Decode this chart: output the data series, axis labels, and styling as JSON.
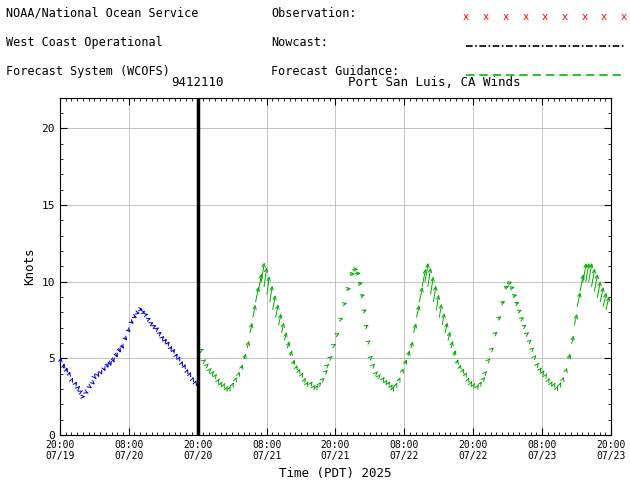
{
  "title": "Port San Luis, CA Winds",
  "station_id": "9412110",
  "ylabel": "Knots",
  "xlabel": "Time (PDT) 2025",
  "ylim": [
    0,
    22
  ],
  "yticks": [
    0,
    5,
    10,
    15,
    20
  ],
  "header_line1": "NOAA/National Ocean Service",
  "header_line2": "West Coast Operational",
  "header_line3": "Forecast System (WCOFS)",
  "legend_obs": "Observation:",
  "legend_now": "Nowcast:",
  "legend_fcast": "Forecast Guidance:",
  "obs_color": "#ff0000",
  "now_color": "#000000",
  "fcast_color": "#00bb00",
  "arrow_color_blue": "#0000cc",
  "arrow_color_green": "#00aa00",
  "vline_x": 24,
  "bg_color": "#ffffff",
  "x_tick_positions": [
    0,
    12,
    24,
    36,
    48,
    60,
    72,
    84,
    96
  ],
  "tick_labels": [
    "20:00\n07/19",
    "08:00\n07/20",
    "20:00\n07/20",
    "08:00\n07/21",
    "20:00\n07/21",
    "08:00\n07/22",
    "20:00\n07/22",
    "08:00\n07/23",
    "20:00\n07/23"
  ],
  "wind_data": [
    {
      "t": 0.0,
      "spd": 4.5,
      "ang": 200,
      "green": false
    },
    {
      "t": 0.5,
      "spd": 4.2,
      "ang": 210,
      "green": false
    },
    {
      "t": 1.0,
      "spd": 4.0,
      "ang": 215,
      "green": false
    },
    {
      "t": 1.5,
      "spd": 3.8,
      "ang": 220,
      "green": false
    },
    {
      "t": 2.0,
      "spd": 3.5,
      "ang": 230,
      "green": false
    },
    {
      "t": 2.5,
      "spd": 3.2,
      "ang": 240,
      "green": false
    },
    {
      "t": 3.0,
      "spd": 3.0,
      "ang": 250,
      "green": false
    },
    {
      "t": 3.5,
      "spd": 2.8,
      "ang": 260,
      "green": false
    },
    {
      "t": 4.0,
      "spd": 2.5,
      "ang": 270,
      "green": false
    },
    {
      "t": 4.5,
      "spd": 2.8,
      "ang": 280,
      "green": false
    },
    {
      "t": 5.0,
      "spd": 3.2,
      "ang": 285,
      "green": false
    },
    {
      "t": 5.5,
      "spd": 3.5,
      "ang": 290,
      "green": false
    },
    {
      "t": 6.0,
      "spd": 3.8,
      "ang": 295,
      "green": false
    },
    {
      "t": 6.5,
      "spd": 4.0,
      "ang": 300,
      "green": false
    },
    {
      "t": 7.0,
      "spd": 4.2,
      "ang": 305,
      "green": false
    },
    {
      "t": 7.5,
      "spd": 4.5,
      "ang": 310,
      "green": false
    },
    {
      "t": 8.0,
      "spd": 4.8,
      "ang": 315,
      "green": false
    },
    {
      "t": 8.5,
      "spd": 5.0,
      "ang": 320,
      "green": false
    },
    {
      "t": 9.0,
      "spd": 5.2,
      "ang": 315,
      "green": false
    },
    {
      "t": 9.5,
      "spd": 5.5,
      "ang": 310,
      "green": false
    },
    {
      "t": 10.0,
      "spd": 5.8,
      "ang": 305,
      "green": false
    },
    {
      "t": 10.5,
      "spd": 6.0,
      "ang": 300,
      "green": false
    },
    {
      "t": 11.0,
      "spd": 6.5,
      "ang": 295,
      "green": false
    },
    {
      "t": 11.5,
      "spd": 7.0,
      "ang": 290,
      "green": false
    },
    {
      "t": 12.0,
      "spd": 7.5,
      "ang": 285,
      "green": false
    },
    {
      "t": 12.5,
      "spd": 7.8,
      "ang": 280,
      "green": false
    },
    {
      "t": 13.0,
      "spd": 8.0,
      "ang": 275,
      "green": false
    },
    {
      "t": 13.5,
      "spd": 8.2,
      "ang": 270,
      "green": false
    },
    {
      "t": 14.0,
      "spd": 8.0,
      "ang": 268,
      "green": false
    },
    {
      "t": 14.5,
      "spd": 7.8,
      "ang": 265,
      "green": false
    },
    {
      "t": 15.0,
      "spd": 7.5,
      "ang": 263,
      "green": false
    },
    {
      "t": 15.5,
      "spd": 7.2,
      "ang": 260,
      "green": false
    },
    {
      "t": 16.0,
      "spd": 7.0,
      "ang": 258,
      "green": false
    },
    {
      "t": 16.5,
      "spd": 6.8,
      "ang": 255,
      "green": false
    },
    {
      "t": 17.0,
      "spd": 6.5,
      "ang": 253,
      "green": false
    },
    {
      "t": 17.5,
      "spd": 6.2,
      "ang": 250,
      "green": false
    },
    {
      "t": 18.0,
      "spd": 6.0,
      "ang": 248,
      "green": false
    },
    {
      "t": 18.5,
      "spd": 5.8,
      "ang": 245,
      "green": false
    },
    {
      "t": 19.0,
      "spd": 5.5,
      "ang": 243,
      "green": false
    },
    {
      "t": 19.5,
      "spd": 5.3,
      "ang": 240,
      "green": false
    },
    {
      "t": 20.0,
      "spd": 5.0,
      "ang": 238,
      "green": false
    },
    {
      "t": 20.5,
      "spd": 4.8,
      "ang": 235,
      "green": false
    },
    {
      "t": 21.0,
      "spd": 4.5,
      "ang": 233,
      "green": false
    },
    {
      "t": 21.5,
      "spd": 4.3,
      "ang": 230,
      "green": false
    },
    {
      "t": 22.0,
      "spd": 4.0,
      "ang": 228,
      "green": false
    },
    {
      "t": 22.5,
      "spd": 3.8,
      "ang": 225,
      "green": false
    },
    {
      "t": 23.0,
      "spd": 3.5,
      "ang": 222,
      "green": false
    },
    {
      "t": 23.5,
      "spd": 3.3,
      "ang": 220,
      "green": false
    },
    {
      "t": 24.0,
      "spd": 3.2,
      "ang": 218,
      "green": false
    },
    {
      "t": 24.5,
      "spd": 5.5,
      "ang": 260,
      "green": true
    },
    {
      "t": 25.0,
      "spd": 4.8,
      "ang": 255,
      "green": true
    },
    {
      "t": 25.5,
      "spd": 4.5,
      "ang": 250,
      "green": true
    },
    {
      "t": 26.0,
      "spd": 4.2,
      "ang": 248,
      "green": true
    },
    {
      "t": 26.5,
      "spd": 4.0,
      "ang": 245,
      "green": true
    },
    {
      "t": 27.0,
      "spd": 3.8,
      "ang": 242,
      "green": true
    },
    {
      "t": 27.5,
      "spd": 3.5,
      "ang": 240,
      "green": true
    },
    {
      "t": 28.0,
      "spd": 3.3,
      "ang": 238,
      "green": true
    },
    {
      "t": 28.5,
      "spd": 3.2,
      "ang": 235,
      "green": true
    },
    {
      "t": 29.0,
      "spd": 3.0,
      "ang": 233,
      "green": true
    },
    {
      "t": 29.5,
      "spd": 3.0,
      "ang": 230,
      "green": true
    },
    {
      "t": 30.0,
      "spd": 3.2,
      "ang": 228,
      "green": true
    },
    {
      "t": 30.5,
      "spd": 3.5,
      "ang": 225,
      "green": true
    },
    {
      "t": 31.0,
      "spd": 3.8,
      "ang": 222,
      "green": true
    },
    {
      "t": 31.5,
      "spd": 4.2,
      "ang": 220,
      "green": true
    },
    {
      "t": 32.0,
      "spd": 4.8,
      "ang": 218,
      "green": true
    },
    {
      "t": 32.5,
      "spd": 5.5,
      "ang": 215,
      "green": true
    },
    {
      "t": 33.0,
      "spd": 6.5,
      "ang": 212,
      "green": true
    },
    {
      "t": 33.5,
      "spd": 7.5,
      "ang": 210,
      "green": true
    },
    {
      "t": 34.0,
      "spd": 8.5,
      "ang": 208,
      "green": true
    },
    {
      "t": 34.5,
      "spd": 9.2,
      "ang": 205,
      "green": true
    },
    {
      "t": 35.0,
      "spd": 9.8,
      "ang": 203,
      "green": true
    },
    {
      "t": 35.5,
      "spd": 9.5,
      "ang": 200,
      "green": true
    },
    {
      "t": 36.0,
      "spd": 9.0,
      "ang": 200,
      "green": true
    },
    {
      "t": 36.5,
      "spd": 8.5,
      "ang": 202,
      "green": true
    },
    {
      "t": 37.0,
      "spd": 8.0,
      "ang": 205,
      "green": true
    },
    {
      "t": 37.5,
      "spd": 7.5,
      "ang": 208,
      "green": true
    },
    {
      "t": 38.0,
      "spd": 7.0,
      "ang": 210,
      "green": true
    },
    {
      "t": 38.5,
      "spd": 6.5,
      "ang": 212,
      "green": true
    },
    {
      "t": 39.0,
      "spd": 6.0,
      "ang": 215,
      "green": true
    },
    {
      "t": 39.5,
      "spd": 5.5,
      "ang": 218,
      "green": true
    },
    {
      "t": 40.0,
      "spd": 5.0,
      "ang": 220,
      "green": true
    },
    {
      "t": 40.5,
      "spd": 4.5,
      "ang": 223,
      "green": true
    },
    {
      "t": 41.0,
      "spd": 4.2,
      "ang": 225,
      "green": true
    },
    {
      "t": 41.5,
      "spd": 4.0,
      "ang": 228,
      "green": true
    },
    {
      "t": 42.0,
      "spd": 3.8,
      "ang": 230,
      "green": true
    },
    {
      "t": 42.5,
      "spd": 3.5,
      "ang": 233,
      "green": true
    },
    {
      "t": 43.0,
      "spd": 3.3,
      "ang": 235,
      "green": true
    },
    {
      "t": 43.5,
      "spd": 3.2,
      "ang": 238,
      "green": true
    },
    {
      "t": 44.0,
      "spd": 3.0,
      "ang": 240,
      "green": true
    },
    {
      "t": 44.5,
      "spd": 3.0,
      "ang": 242,
      "green": true
    },
    {
      "t": 45.0,
      "spd": 3.2,
      "ang": 245,
      "green": true
    },
    {
      "t": 45.5,
      "spd": 3.5,
      "ang": 248,
      "green": true
    },
    {
      "t": 46.0,
      "spd": 4.0,
      "ang": 250,
      "green": true
    },
    {
      "t": 46.5,
      "spd": 4.5,
      "ang": 253,
      "green": true
    },
    {
      "t": 47.0,
      "spd": 5.0,
      "ang": 255,
      "green": true
    },
    {
      "t": 47.5,
      "spd": 5.8,
      "ang": 258,
      "green": true
    },
    {
      "t": 48.0,
      "spd": 6.5,
      "ang": 260,
      "green": true
    },
    {
      "t": 48.5,
      "spd": 7.5,
      "ang": 263,
      "green": true
    },
    {
      "t": 49.0,
      "spd": 8.5,
      "ang": 265,
      "green": true
    },
    {
      "t": 49.5,
      "spd": 9.5,
      "ang": 268,
      "green": true
    },
    {
      "t": 50.0,
      "spd": 10.5,
      "ang": 270,
      "green": true
    },
    {
      "t": 50.5,
      "spd": 10.8,
      "ang": 270,
      "green": true
    },
    {
      "t": 51.0,
      "spd": 10.5,
      "ang": 268,
      "green": true
    },
    {
      "t": 51.5,
      "spd": 9.8,
      "ang": 265,
      "green": true
    },
    {
      "t": 52.0,
      "spd": 9.0,
      "ang": 263,
      "green": true
    },
    {
      "t": 52.5,
      "spd": 8.0,
      "ang": 260,
      "green": true
    },
    {
      "t": 53.0,
      "spd": 7.0,
      "ang": 258,
      "green": true
    },
    {
      "t": 53.5,
      "spd": 6.0,
      "ang": 255,
      "green": true
    },
    {
      "t": 54.0,
      "spd": 5.0,
      "ang": 252,
      "green": true
    },
    {
      "t": 54.5,
      "spd": 4.5,
      "ang": 250,
      "green": true
    },
    {
      "t": 55.0,
      "spd": 4.0,
      "ang": 248,
      "green": true
    },
    {
      "t": 55.5,
      "spd": 3.8,
      "ang": 245,
      "green": true
    },
    {
      "t": 56.0,
      "spd": 3.5,
      "ang": 243,
      "green": true
    },
    {
      "t": 56.5,
      "spd": 3.3,
      "ang": 240,
      "green": true
    },
    {
      "t": 57.0,
      "spd": 3.2,
      "ang": 238,
      "green": true
    },
    {
      "t": 57.5,
      "spd": 3.0,
      "ang": 235,
      "green": true
    },
    {
      "t": 58.0,
      "spd": 3.0,
      "ang": 233,
      "green": true
    },
    {
      "t": 58.5,
      "spd": 3.2,
      "ang": 230,
      "green": true
    },
    {
      "t": 59.0,
      "spd": 3.5,
      "ang": 228,
      "green": true
    },
    {
      "t": 59.5,
      "spd": 4.0,
      "ang": 225,
      "green": true
    },
    {
      "t": 60.0,
      "spd": 4.5,
      "ang": 222,
      "green": true
    },
    {
      "t": 60.5,
      "spd": 5.0,
      "ang": 220,
      "green": true
    },
    {
      "t": 61.0,
      "spd": 5.5,
      "ang": 218,
      "green": true
    },
    {
      "t": 61.5,
      "spd": 6.5,
      "ang": 215,
      "green": true
    },
    {
      "t": 62.0,
      "spd": 7.5,
      "ang": 212,
      "green": true
    },
    {
      "t": 62.5,
      "spd": 8.5,
      "ang": 210,
      "green": true
    },
    {
      "t": 63.0,
      "spd": 9.5,
      "ang": 208,
      "green": true
    },
    {
      "t": 63.5,
      "spd": 9.8,
      "ang": 205,
      "green": true
    },
    {
      "t": 64.0,
      "spd": 9.5,
      "ang": 203,
      "green": true
    },
    {
      "t": 64.5,
      "spd": 9.0,
      "ang": 202,
      "green": true
    },
    {
      "t": 65.0,
      "spd": 8.5,
      "ang": 202,
      "green": true
    },
    {
      "t": 65.5,
      "spd": 8.0,
      "ang": 203,
      "green": true
    },
    {
      "t": 66.0,
      "spd": 7.5,
      "ang": 205,
      "green": true
    },
    {
      "t": 66.5,
      "spd": 7.0,
      "ang": 207,
      "green": true
    },
    {
      "t": 67.0,
      "spd": 6.5,
      "ang": 210,
      "green": true
    },
    {
      "t": 67.5,
      "spd": 6.0,
      "ang": 212,
      "green": true
    },
    {
      "t": 68.0,
      "spd": 5.5,
      "ang": 215,
      "green": true
    },
    {
      "t": 68.5,
      "spd": 5.0,
      "ang": 218,
      "green": true
    },
    {
      "t": 69.0,
      "spd": 4.5,
      "ang": 220,
      "green": true
    },
    {
      "t": 69.5,
      "spd": 4.2,
      "ang": 222,
      "green": true
    },
    {
      "t": 70.0,
      "spd": 4.0,
      "ang": 225,
      "green": true
    },
    {
      "t": 70.5,
      "spd": 3.8,
      "ang": 228,
      "green": true
    },
    {
      "t": 71.0,
      "spd": 3.5,
      "ang": 230,
      "green": true
    },
    {
      "t": 71.5,
      "spd": 3.3,
      "ang": 233,
      "green": true
    },
    {
      "t": 72.0,
      "spd": 3.2,
      "ang": 235,
      "green": true
    },
    {
      "t": 72.5,
      "spd": 3.0,
      "ang": 238,
      "green": true
    },
    {
      "t": 73.0,
      "spd": 3.2,
      "ang": 240,
      "green": true
    },
    {
      "t": 73.5,
      "spd": 3.5,
      "ang": 243,
      "green": true
    },
    {
      "t": 74.0,
      "spd": 4.0,
      "ang": 245,
      "green": true
    },
    {
      "t": 74.5,
      "spd": 4.8,
      "ang": 248,
      "green": true
    },
    {
      "t": 75.0,
      "spd": 5.5,
      "ang": 250,
      "green": true
    },
    {
      "t": 75.5,
      "spd": 6.5,
      "ang": 253,
      "green": true
    },
    {
      "t": 76.0,
      "spd": 7.5,
      "ang": 255,
      "green": true
    },
    {
      "t": 76.5,
      "spd": 8.5,
      "ang": 258,
      "green": true
    },
    {
      "t": 77.0,
      "spd": 9.5,
      "ang": 260,
      "green": true
    },
    {
      "t": 77.5,
      "spd": 9.8,
      "ang": 262,
      "green": true
    },
    {
      "t": 78.0,
      "spd": 9.5,
      "ang": 263,
      "green": true
    },
    {
      "t": 78.5,
      "spd": 9.0,
      "ang": 263,
      "green": true
    },
    {
      "t": 79.0,
      "spd": 8.5,
      "ang": 262,
      "green": true
    },
    {
      "t": 79.5,
      "spd": 8.0,
      "ang": 261,
      "green": true
    },
    {
      "t": 80.0,
      "spd": 7.5,
      "ang": 260,
      "green": true
    },
    {
      "t": 80.5,
      "spd": 7.0,
      "ang": 258,
      "green": true
    },
    {
      "t": 81.0,
      "spd": 6.5,
      "ang": 255,
      "green": true
    },
    {
      "t": 81.5,
      "spd": 6.0,
      "ang": 252,
      "green": true
    },
    {
      "t": 82.0,
      "spd": 5.5,
      "ang": 250,
      "green": true
    },
    {
      "t": 82.5,
      "spd": 5.0,
      "ang": 248,
      "green": true
    },
    {
      "t": 83.0,
      "spd": 4.5,
      "ang": 245,
      "green": true
    },
    {
      "t": 83.5,
      "spd": 4.2,
      "ang": 242,
      "green": true
    },
    {
      "t": 84.0,
      "spd": 4.0,
      "ang": 240,
      "green": true
    },
    {
      "t": 84.5,
      "spd": 3.8,
      "ang": 238,
      "green": true
    },
    {
      "t": 85.0,
      "spd": 3.5,
      "ang": 235,
      "green": true
    },
    {
      "t": 85.5,
      "spd": 3.3,
      "ang": 233,
      "green": true
    },
    {
      "t": 86.0,
      "spd": 3.2,
      "ang": 230,
      "green": true
    },
    {
      "t": 86.5,
      "spd": 3.0,
      "ang": 228,
      "green": true
    },
    {
      "t": 87.0,
      "spd": 3.2,
      "ang": 225,
      "green": true
    },
    {
      "t": 87.5,
      "spd": 3.5,
      "ang": 222,
      "green": true
    },
    {
      "t": 88.0,
      "spd": 4.0,
      "ang": 220,
      "green": true
    },
    {
      "t": 88.5,
      "spd": 4.8,
      "ang": 218,
      "green": true
    },
    {
      "t": 89.0,
      "spd": 5.8,
      "ang": 215,
      "green": true
    },
    {
      "t": 89.5,
      "spd": 7.0,
      "ang": 212,
      "green": true
    },
    {
      "t": 90.0,
      "spd": 8.2,
      "ang": 210,
      "green": true
    },
    {
      "t": 90.5,
      "spd": 9.2,
      "ang": 208,
      "green": true
    },
    {
      "t": 91.0,
      "spd": 9.8,
      "ang": 206,
      "green": true
    },
    {
      "t": 91.5,
      "spd": 9.8,
      "ang": 205,
      "green": true
    },
    {
      "t": 92.0,
      "spd": 9.8,
      "ang": 205,
      "green": true
    },
    {
      "t": 92.5,
      "spd": 9.5,
      "ang": 206,
      "green": true
    },
    {
      "t": 93.0,
      "spd": 9.2,
      "ang": 207,
      "green": true
    },
    {
      "t": 93.5,
      "spd": 8.8,
      "ang": 208,
      "green": true
    },
    {
      "t": 94.0,
      "spd": 8.5,
      "ang": 210,
      "green": true
    },
    {
      "t": 94.5,
      "spd": 8.2,
      "ang": 212,
      "green": true
    },
    {
      "t": 95.0,
      "spd": 8.0,
      "ang": 213,
      "green": true
    },
    {
      "t": 95.5,
      "spd": 6.5,
      "ang": 215,
      "green": true
    },
    {
      "t": 96.0,
      "spd": 6.2,
      "ang": 218,
      "green": true
    }
  ]
}
